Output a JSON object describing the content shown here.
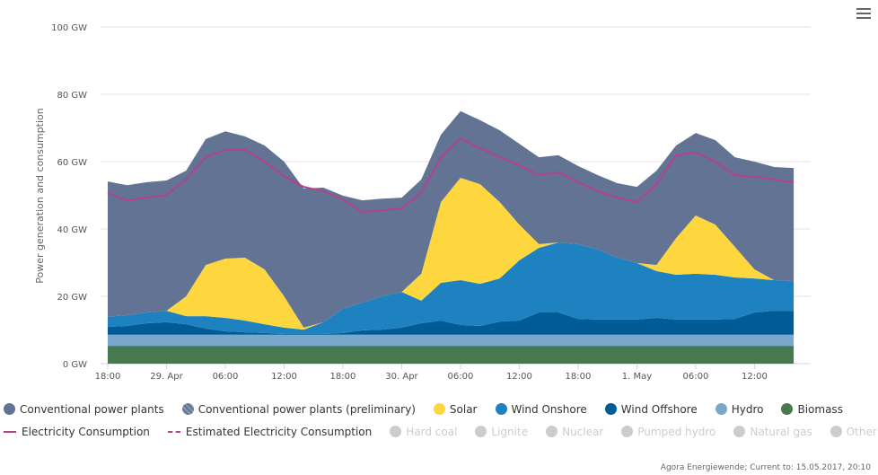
{
  "chart_data": {
    "type": "area",
    "stacked": true,
    "xlabel": "",
    "ylabel": "Power generation and consumption",
    "ylim": [
      0,
      100
    ],
    "yticks": [
      {
        "value": 0,
        "label": "0 GW"
      },
      {
        "value": 20,
        "label": "20 GW"
      },
      {
        "value": 40,
        "label": "40 GW"
      },
      {
        "value": 60,
        "label": "60 GW"
      },
      {
        "value": 80,
        "label": "80 GW"
      },
      {
        "value": 100,
        "label": "100 GW"
      }
    ],
    "xrange": [
      "2017-04-28 18:00",
      "2017-05-01 17:00"
    ],
    "xticks": [
      {
        "t": "2017-04-28 18:00",
        "label": "18:00"
      },
      {
        "t": "2017-04-29 00:00",
        "label": "29. Apr"
      },
      {
        "t": "2017-04-29 06:00",
        "label": "06:00"
      },
      {
        "t": "2017-04-29 12:00",
        "label": "12:00"
      },
      {
        "t": "2017-04-29 18:00",
        "label": "18:00"
      },
      {
        "t": "2017-04-30 00:00",
        "label": "30. Apr"
      },
      {
        "t": "2017-04-30 06:00",
        "label": "06:00"
      },
      {
        "t": "2017-04-30 12:00",
        "label": "12:00"
      },
      {
        "t": "2017-04-30 18:00",
        "label": "18:00"
      },
      {
        "t": "2017-05-01 00:00",
        "label": "1. May"
      },
      {
        "t": "2017-05-01 06:00",
        "label": "06:00"
      },
      {
        "t": "2017-05-01 12:00",
        "label": "12:00"
      }
    ],
    "grid": true,
    "legend_placement": "bottom",
    "x": [
      "2017-04-28 18:00",
      "2017-04-28 20:00",
      "2017-04-28 22:00",
      "2017-04-29 00:00",
      "2017-04-29 02:00",
      "2017-04-29 04:00",
      "2017-04-29 06:00",
      "2017-04-29 08:00",
      "2017-04-29 10:00",
      "2017-04-29 12:00",
      "2017-04-29 14:00",
      "2017-04-29 16:00",
      "2017-04-29 18:00",
      "2017-04-29 20:00",
      "2017-04-29 22:00",
      "2017-04-30 00:00",
      "2017-04-30 02:00",
      "2017-04-30 04:00",
      "2017-04-30 06:00",
      "2017-04-30 08:00",
      "2017-04-30 10:00",
      "2017-04-30 12:00",
      "2017-04-30 14:00",
      "2017-04-30 16:00",
      "2017-04-30 18:00",
      "2017-04-30 20:00",
      "2017-04-30 22:00",
      "2017-05-01 00:00",
      "2017-05-01 02:00",
      "2017-05-01 04:00",
      "2017-05-01 06:00",
      "2017-05-01 08:00",
      "2017-05-01 10:00",
      "2017-05-01 12:00",
      "2017-05-01 14:00",
      "2017-05-01 16:00"
    ],
    "series": [
      {
        "name": "Biomass",
        "color": "#47784f",
        "values": [
          5.3,
          5.3,
          5.3,
          5.3,
          5.3,
          5.3,
          5.3,
          5.3,
          5.3,
          5.3,
          5.3,
          5.3,
          5.3,
          5.3,
          5.3,
          5.3,
          5.3,
          5.3,
          5.3,
          5.3,
          5.3,
          5.3,
          5.3,
          5.3,
          5.3,
          5.3,
          5.3,
          5.3,
          5.3,
          5.3,
          5.3,
          5.3,
          5.3,
          5.3,
          5.3,
          5.3
        ]
      },
      {
        "name": "Hydro",
        "color": "#78a8cc",
        "values": [
          3.3,
          3.3,
          3.3,
          3.3,
          3.3,
          3.3,
          3.3,
          3.3,
          3.3,
          3.3,
          3.3,
          3.3,
          3.3,
          3.3,
          3.3,
          3.3,
          3.3,
          3.3,
          3.3,
          3.3,
          3.3,
          3.3,
          3.3,
          3.3,
          3.3,
          3.3,
          3.3,
          3.3,
          3.3,
          3.3,
          3.3,
          3.3,
          3.3,
          3.3,
          3.3,
          3.3
        ]
      },
      {
        "name": "Wind Offshore",
        "color": "#005b96",
        "values": [
          2.3,
          2.6,
          3.4,
          3.7,
          3.1,
          1.8,
          1.0,
          0.7,
          0.5,
          0.2,
          0.2,
          0.2,
          0.5,
          1.3,
          1.5,
          2.1,
          3.4,
          4.2,
          2.9,
          2.6,
          3.9,
          4.2,
          6.6,
          6.6,
          4.7,
          4.5,
          4.5,
          4.5,
          5.0,
          4.5,
          4.5,
          4.5,
          4.7,
          6.6,
          7.1,
          7.1
        ]
      },
      {
        "name": "Wind Onshore",
        "color": "#1f82c0",
        "values": [
          3.0,
          3.2,
          3.2,
          3.4,
          2.4,
          3.7,
          4.0,
          3.5,
          2.6,
          1.9,
          1.3,
          3.5,
          7.2,
          8.2,
          9.9,
          10.6,
          6.7,
          11.2,
          13.3,
          12.5,
          12.8,
          17.9,
          19.2,
          20.8,
          22.2,
          20.8,
          18.4,
          16.8,
          13.9,
          13.3,
          13.6,
          13.3,
          12.3,
          10.1,
          9.1,
          8.8
        ]
      },
      {
        "name": "Solar",
        "color": "#fed73f",
        "values": [
          0,
          0,
          0,
          0,
          5.9,
          15.2,
          17.6,
          18.7,
          16.3,
          9.3,
          0.6,
          0,
          0,
          0,
          0,
          0,
          8.0,
          24.0,
          30.4,
          29.6,
          22.7,
          10.6,
          1.1,
          0,
          0,
          0,
          0,
          0,
          1.8,
          10.9,
          17.3,
          14.9,
          9.1,
          2.7,
          0,
          0
        ]
      },
      {
        "name": "Conventional power plants",
        "color": "#627394",
        "values": [
          40.2,
          38.6,
          38.7,
          38.7,
          37.3,
          37.4,
          37.8,
          36.0,
          36.8,
          40.0,
          41.3,
          40.0,
          33.6,
          30.4,
          29.0,
          28.0,
          28.0,
          20.0,
          19.8,
          19.0,
          21.3,
          24.0,
          25.8,
          25.9,
          23.2,
          22.1,
          22.1,
          22.6,
          28.0,
          27.5,
          24.5,
          25.1,
          26.6,
          32.0,
          33.6,
          33.6
        ]
      }
    ],
    "lines": [
      {
        "name": "Electricity Consumption",
        "color": "#b3418f",
        "values": [
          50.7,
          48.5,
          49.3,
          50.1,
          54.7,
          61.3,
          63.5,
          63.5,
          60.0,
          55.7,
          52.5,
          51.2,
          48.8,
          45.0,
          45.6,
          46.1,
          50.7,
          61.3,
          66.9,
          64.0,
          61.3,
          58.9,
          56.0,
          56.8,
          53.9,
          51.2,
          49.3,
          48.0,
          53.3,
          61.9,
          62.7,
          60.0,
          56.0,
          55.5,
          54.7,
          53.9
        ]
      }
    ]
  },
  "legend": {
    "row1": [
      {
        "label": "Conventional power plants",
        "color": "#627394",
        "active": true
      },
      {
        "label": "Conventional power plants (preliminary)",
        "color": "#7482a0",
        "active": true
      },
      {
        "label": "Solar",
        "color": "#fed73f",
        "active": true
      },
      {
        "label": "Wind Onshore",
        "color": "#1f82c0",
        "active": true
      },
      {
        "label": "Wind Offshore",
        "color": "#005b96",
        "active": true
      },
      {
        "label": "Hydro",
        "color": "#78a8cc",
        "active": true
      },
      {
        "label": "Biomass",
        "color": "#47784f",
        "active": true
      }
    ],
    "row2_lines": [
      {
        "label": "Electricity Consumption",
        "color": "#b3418f",
        "style": "solid"
      },
      {
        "label": "Estimated Electricity Consumption",
        "color": "#b3418f",
        "style": "dashed"
      }
    ],
    "row2_inactive": [
      {
        "label": "Hard coal",
        "color": "#cccccc"
      },
      {
        "label": "Lignite",
        "color": "#cccccc"
      },
      {
        "label": "Nuclear",
        "color": "#cccccc"
      },
      {
        "label": "Pumped hydro",
        "color": "#cccccc"
      },
      {
        "label": "Natural gas",
        "color": "#cccccc"
      },
      {
        "label": "Other",
        "color": "#cccccc"
      }
    ]
  },
  "credit": "Agora Energiewende; Current to: 15.05.2017, 20:10",
  "menu_icon": "hamburger-menu-icon"
}
